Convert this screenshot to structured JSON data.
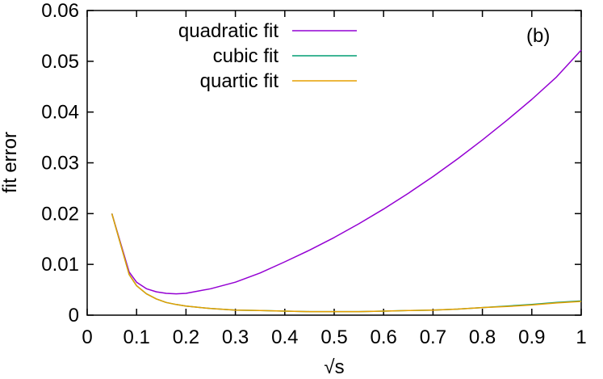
{
  "chart_data": {
    "type": "line",
    "panel_label": "(b)",
    "xlabel": "√s",
    "ylabel": "fit error",
    "xlim": [
      0,
      1
    ],
    "ylim": [
      0,
      0.06
    ],
    "xticks": [
      "0",
      "0.1",
      "0.2",
      "0.3",
      "0.4",
      "0.5",
      "0.6",
      "0.7",
      "0.8",
      "0.9",
      "1"
    ],
    "yticks": [
      "0",
      "0.01",
      "0.02",
      "0.03",
      "0.04",
      "0.05",
      "0.06"
    ],
    "grid": false,
    "legend_position": "top-left",
    "series": [
      {
        "name": "quadratic fit",
        "color": "#9400d3",
        "x": [
          0.05,
          0.085,
          0.1,
          0.12,
          0.14,
          0.16,
          0.18,
          0.2,
          0.25,
          0.3,
          0.35,
          0.4,
          0.45,
          0.5,
          0.55,
          0.6,
          0.65,
          0.7,
          0.75,
          0.8,
          0.85,
          0.9,
          0.95,
          1.0
        ],
        "y": [
          0.02,
          0.0085,
          0.0065,
          0.0052,
          0.0046,
          0.0043,
          0.0042,
          0.0043,
          0.0052,
          0.0065,
          0.0083,
          0.0105,
          0.0128,
          0.0153,
          0.018,
          0.0209,
          0.024,
          0.0273,
          0.0308,
          0.0345,
          0.0384,
          0.0425,
          0.0469,
          0.0522
        ]
      },
      {
        "name": "cubic fit",
        "color": "#009e73",
        "x": [
          0.05,
          0.085,
          0.1,
          0.12,
          0.14,
          0.16,
          0.18,
          0.2,
          0.25,
          0.3,
          0.35,
          0.4,
          0.45,
          0.5,
          0.55,
          0.6,
          0.65,
          0.7,
          0.75,
          0.8,
          0.85,
          0.9,
          0.95,
          1.0
        ],
        "y": [
          0.02,
          0.008,
          0.0058,
          0.0042,
          0.0032,
          0.0025,
          0.0021,
          0.0018,
          0.0013,
          0.001,
          0.0009,
          0.0008,
          0.0007,
          0.0007,
          0.0007,
          0.0008,
          0.0009,
          0.001,
          0.0012,
          0.0015,
          0.0018,
          0.0021,
          0.0025,
          0.0028
        ]
      },
      {
        "name": "quartic fit",
        "color": "#e69f00",
        "x": [
          0.05,
          0.085,
          0.1,
          0.12,
          0.14,
          0.16,
          0.18,
          0.2,
          0.25,
          0.3,
          0.35,
          0.4,
          0.45,
          0.5,
          0.55,
          0.6,
          0.65,
          0.7,
          0.75,
          0.8,
          0.85,
          0.9,
          0.95,
          1.0
        ],
        "y": [
          0.02,
          0.008,
          0.0058,
          0.0042,
          0.0032,
          0.0025,
          0.0021,
          0.0018,
          0.0013,
          0.001,
          0.0009,
          0.0008,
          0.0007,
          0.0007,
          0.0007,
          0.0008,
          0.0009,
          0.001,
          0.0012,
          0.0015,
          0.0017,
          0.002,
          0.0024,
          0.0027
        ]
      }
    ]
  }
}
